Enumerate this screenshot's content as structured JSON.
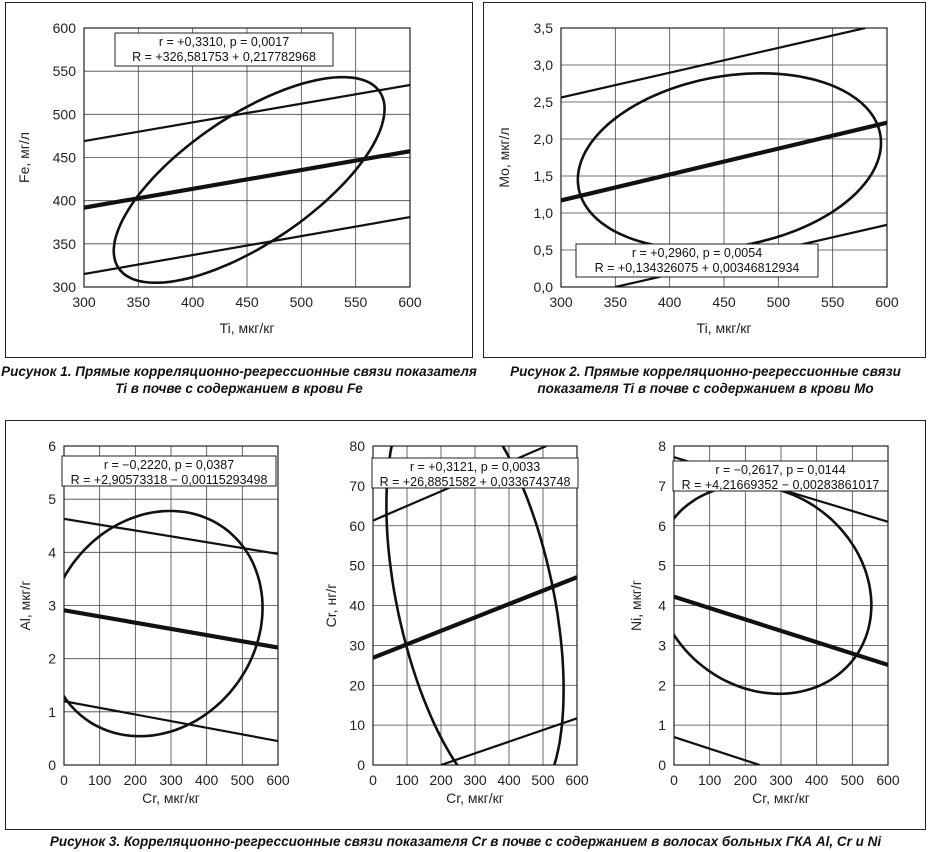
{
  "captions": {
    "fig1": "Рисунок 1. Прямые корреляционно-регрессионные связи показателя Ti в почве с содержанием в крови Fe",
    "fig2": "Рисунок 2. Прямые корреляционно-регрессионные связи показателя Ti в почве с содержанием в крови Mo",
    "fig3": "Рисунок 3. Корреляционно-регрессионные связи показателя Cr в почве с содержанием в волосах больных ГКА Al, Cr и Ni"
  },
  "chart_data": [
    {
      "type": "scatter",
      "xlabel": "Ti, мкг/кг",
      "ylabel": "Fe, мг/л",
      "xlim": [
        300,
        600
      ],
      "ylim": [
        300,
        600
      ],
      "xticks": [
        300,
        350,
        400,
        450,
        500,
        550,
        600
      ],
      "yticks": [
        300,
        350,
        400,
        450,
        500,
        550,
        600
      ],
      "xtick_labels": [
        "300",
        "350",
        "400",
        "450",
        "500",
        "550",
        "600"
      ],
      "ytick_labels": [
        "300",
        "350",
        "400",
        "450",
        "500",
        "550",
        "600"
      ],
      "grid": true,
      "annotation": [
        "r = +0,3310, p = 0,0017",
        "R = +326,581753 + 0,217782968"
      ],
      "regression": [
        [
          300,
          391.9
        ],
        [
          600,
          457.3
        ]
      ],
      "ci_upper": [
        [
          300,
          469
        ],
        [
          600,
          534
        ]
      ],
      "ci_lower": [
        [
          300,
          315
        ],
        [
          600,
          381
        ]
      ],
      "ellipse": {
        "cx": 452,
        "cy": 424,
        "rx": 145,
        "ry": 74,
        "angle_deg": 34
      }
    },
    {
      "type": "scatter",
      "xlabel": "Ti, мкг/кг",
      "ylabel": "Mo, мкг/л",
      "xlim": [
        300,
        600
      ],
      "ylim": [
        0,
        3.5
      ],
      "xticks": [
        300,
        350,
        400,
        450,
        500,
        550,
        600
      ],
      "yticks": [
        0,
        0.5,
        1,
        1.5,
        2,
        2.5,
        3,
        3.5
      ],
      "xtick_labels": [
        "300",
        "350",
        "400",
        "450",
        "500",
        "550",
        "600"
      ],
      "ytick_labels": [
        "0,0",
        "0,5",
        "1,0",
        "1,5",
        "2,0",
        "2,5",
        "3,0",
        "3,5"
      ],
      "grid": true,
      "annotation": [
        "r = +0,2960, p = 0,0054",
        "R = +0,134326075 + 0,00346812934"
      ],
      "regression": [
        [
          300,
          1.17
        ],
        [
          600,
          2.22
        ]
      ],
      "ci_upper": [
        [
          300,
          2.56
        ],
        [
          580,
          3.5
        ]
      ],
      "ci_lower": [
        [
          350,
          0
        ],
        [
          600,
          0.84
        ]
      ],
      "ellipse": {
        "cx": 455,
        "cy": 1.7,
        "rx": 141,
        "ry": 1.15,
        "angle_deg": 10
      }
    },
    {
      "type": "scatter",
      "xlabel": "Cr, мкг/кг",
      "ylabel": "Al, мкг/г",
      "xlim": [
        0,
        600
      ],
      "ylim": [
        0,
        6
      ],
      "xticks": [
        0,
        100,
        200,
        300,
        400,
        500,
        600
      ],
      "yticks": [
        0,
        1,
        2,
        3,
        4,
        5,
        6
      ],
      "xtick_labels": [
        "0",
        "100",
        "200",
        "300",
        "400",
        "500",
        "600"
      ],
      "ytick_labels": [
        "0",
        "1",
        "2",
        "3",
        "4",
        "5",
        "6"
      ],
      "grid": true,
      "annotation": [
        "r = −0,2220, p = 0,0387",
        "R = +2,90573318 − 0,00115293498"
      ],
      "regression": [
        [
          0,
          2.91
        ],
        [
          600,
          2.21
        ]
      ],
      "ci_upper": [
        [
          0,
          4.63
        ],
        [
          600,
          3.97
        ]
      ],
      "ci_lower": [
        [
          0,
          1.2
        ],
        [
          600,
          0.45
        ]
      ],
      "ellipse": {
        "cx": 255,
        "cy": 2.66,
        "rx": 285,
        "ry": 2.22,
        "angle_deg": -36
      }
    },
    {
      "type": "scatter",
      "xlabel": "Cr, мкг/кг",
      "ylabel": "Cr, нг/г",
      "xlim": [
        0,
        600
      ],
      "ylim": [
        0,
        80
      ],
      "xticks": [
        0,
        100,
        200,
        300,
        400,
        500,
        600
      ],
      "yticks": [
        0,
        10,
        20,
        30,
        40,
        50,
        60,
        70,
        80
      ],
      "xtick_labels": [
        "0",
        "100",
        "200",
        "300",
        "400",
        "500",
        "600"
      ],
      "ytick_labels": [
        "0",
        "10",
        "20",
        "30",
        "40",
        "50",
        "60",
        "70",
        "80"
      ],
      "grid": true,
      "annotation": [
        "r = +0,3121, p = 0,0033",
        "R = +26,8851582 + 0,0336743748"
      ],
      "regression": [
        [
          0,
          26.9
        ],
        [
          600,
          47.1
        ]
      ],
      "ci_upper": [
        [
          0,
          61.3
        ],
        [
          510,
          80
        ]
      ],
      "ci_lower": [
        [
          200,
          0
        ],
        [
          600,
          11.7
        ]
      ],
      "ellipse": {
        "cx": 300,
        "cy": 42,
        "rx": 230,
        "ry": 54,
        "angle_deg": 12
      }
    },
    {
      "type": "scatter",
      "xlabel": "Cr, мкг/кг",
      "ylabel": "Ni, мкг/г",
      "xlim": [
        0,
        600
      ],
      "ylim": [
        0,
        8
      ],
      "xticks": [
        0,
        100,
        200,
        300,
        400,
        500,
        600
      ],
      "yticks": [
        0,
        1,
        2,
        3,
        4,
        5,
        6,
        7,
        8
      ],
      "xtick_labels": [
        "0",
        "100",
        "200",
        "300",
        "400",
        "500",
        "600"
      ],
      "ytick_labels": [
        "0",
        "1",
        "2",
        "3",
        "4",
        "5",
        "6",
        "7",
        "8"
      ],
      "grid": true,
      "annotation": [
        "r = −0,2617, p = 0,0144",
        "R = +4,21669352 − 0,00283861017"
      ],
      "regression": [
        [
          0,
          4.22
        ],
        [
          600,
          2.51
        ]
      ],
      "ci_upper": [
        [
          0,
          7.72
        ],
        [
          600,
          6.1
        ]
      ],
      "ci_lower": [
        [
          0,
          0.7
        ],
        [
          240,
          0
        ]
      ],
      "ellipse": {
        "cx": 250,
        "cy": 4.4,
        "rx": 320,
        "ry": 2.45,
        "angle_deg": -38
      }
    }
  ]
}
